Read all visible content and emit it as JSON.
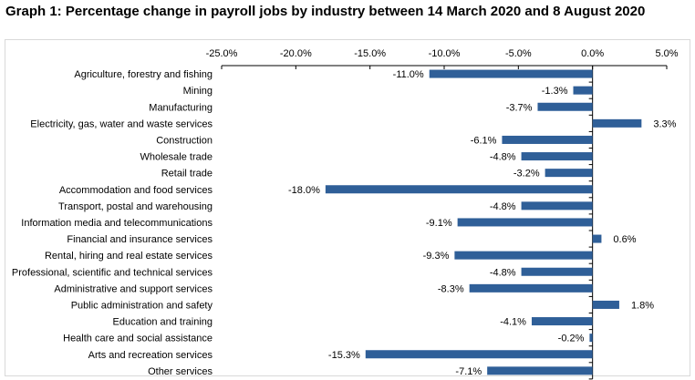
{
  "chart_data": {
    "type": "bar",
    "orientation": "horizontal",
    "title": "Graph 1: Percentage change in payroll jobs by industry between 14 March 2020 and 8 August 2020",
    "xlabel": "",
    "ylabel": "",
    "xlim": [
      -25,
      5
    ],
    "xticks": [
      -25,
      -20,
      -15,
      -10,
      -5,
      0,
      5
    ],
    "xtick_labels": [
      "-25.0%",
      "-20.0%",
      "-15.0%",
      "-10.0%",
      "-5.0%",
      "0.0%",
      "5.0%"
    ],
    "axis_position": "top",
    "grid": false,
    "legend": "none",
    "bar_color": "#2F5F98",
    "categories": [
      "Agriculture, forestry and fishing",
      "Mining",
      "Manufacturing",
      "Electricity, gas, water and waste services",
      "Construction",
      "Wholesale trade",
      "Retail trade",
      "Accommodation and food services",
      "Transport, postal and warehousing",
      "Information media and telecommunications",
      "Financial and insurance services",
      "Rental, hiring and real estate services",
      "Professional, scientific and technical services",
      "Administrative and support services",
      "Public administration and safety",
      "Education and training",
      "Health care and social assistance",
      "Arts and recreation services",
      "Other services"
    ],
    "values": [
      -11.0,
      -1.3,
      -3.7,
      3.3,
      -6.1,
      -4.8,
      -3.2,
      -18.0,
      -4.8,
      -9.1,
      0.6,
      -9.3,
      -4.8,
      -8.3,
      1.8,
      -4.1,
      -0.2,
      -15.3,
      -7.1
    ],
    "data_labels": [
      "-11.0%",
      "-1.3%",
      "-3.7%",
      "3.3%",
      "-6.1%",
      "-4.8%",
      "-3.2%",
      "-18.0%",
      "-4.8%",
      "-9.1%",
      "0.6%",
      "-9.3%",
      "-4.8%",
      "-8.3%",
      "1.8%",
      "-4.1%",
      "-0.2%",
      "-15.3%",
      "-7.1%"
    ]
  }
}
